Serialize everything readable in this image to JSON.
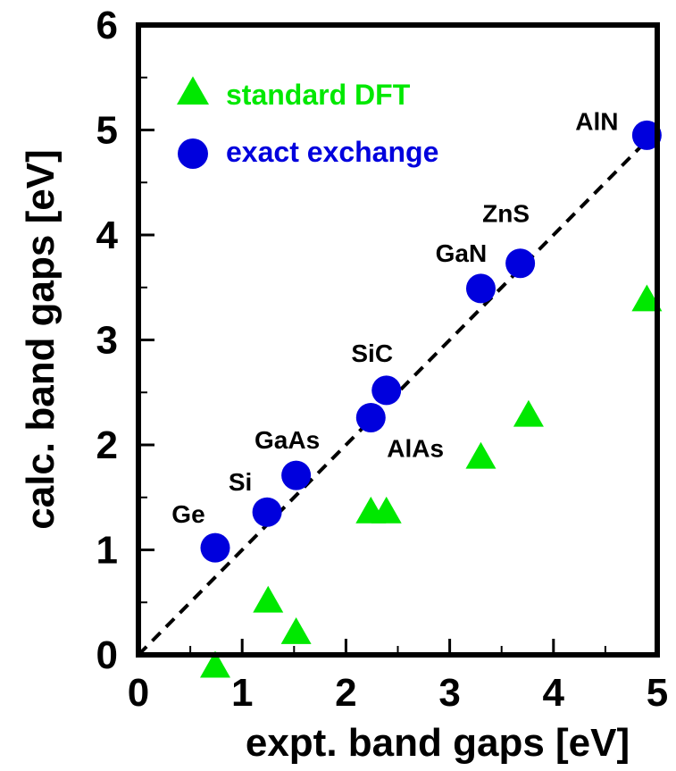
{
  "chart_data": {
    "type": "scatter",
    "title": "",
    "xlabel": "expt. band gaps [eV]",
    "ylabel": "calc. band gaps [eV]",
    "xlim": [
      0,
      5
    ],
    "ylim": [
      0,
      6
    ],
    "x_ticks": [
      0,
      1,
      2,
      3,
      4,
      5
    ],
    "y_ticks": [
      0,
      1,
      2,
      3,
      4,
      5,
      6
    ],
    "grid": false,
    "legend_position": "top-left",
    "reference_line": {
      "style": "dashed",
      "from": [
        0,
        0
      ],
      "to": [
        5,
        5
      ],
      "color": "#000000"
    },
    "series": [
      {
        "name": "standard DFT",
        "marker": "triangle",
        "color": "#00e800",
        "points": [
          {
            "x": 0.74,
            "y": -0.12
          },
          {
            "x": 1.25,
            "y": 0.5
          },
          {
            "x": 1.52,
            "y": 0.2
          },
          {
            "x": 2.24,
            "y": 1.35
          },
          {
            "x": 2.39,
            "y": 1.35
          },
          {
            "x": 3.3,
            "y": 1.87
          },
          {
            "x": 3.76,
            "y": 2.27
          },
          {
            "x": 4.9,
            "y": 3.37
          }
        ]
      },
      {
        "name": "exact exchange",
        "marker": "circle",
        "color": "#0000dd",
        "points": [
          {
            "x": 0.74,
            "y": 1.02,
            "label": "Ge"
          },
          {
            "x": 1.24,
            "y": 1.36,
            "label": "Si"
          },
          {
            "x": 1.52,
            "y": 1.71,
            "label": "GaAs"
          },
          {
            "x": 2.24,
            "y": 2.26,
            "label": "AlAs"
          },
          {
            "x": 2.39,
            "y": 2.52,
            "label": "SiC"
          },
          {
            "x": 3.3,
            "y": 3.49,
            "label": "GaN"
          },
          {
            "x": 3.68,
            "y": 3.73,
            "label": "ZnS"
          },
          {
            "x": 4.9,
            "y": 4.95,
            "label": "AlN"
          }
        ]
      }
    ]
  }
}
